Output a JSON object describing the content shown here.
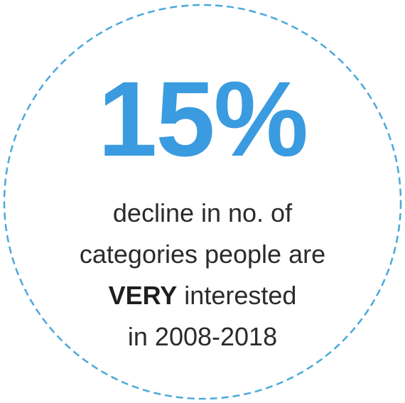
{
  "stat": {
    "value": "15%",
    "line1": "decline in no. of",
    "line2": "categories people are",
    "emphasis": "VERY",
    "line3_rest": " interested",
    "line4": "in 2008-2018"
  },
  "colors": {
    "accent": "#3a9be0",
    "ring": "#4aa8db",
    "text": "#2b2b2b"
  }
}
